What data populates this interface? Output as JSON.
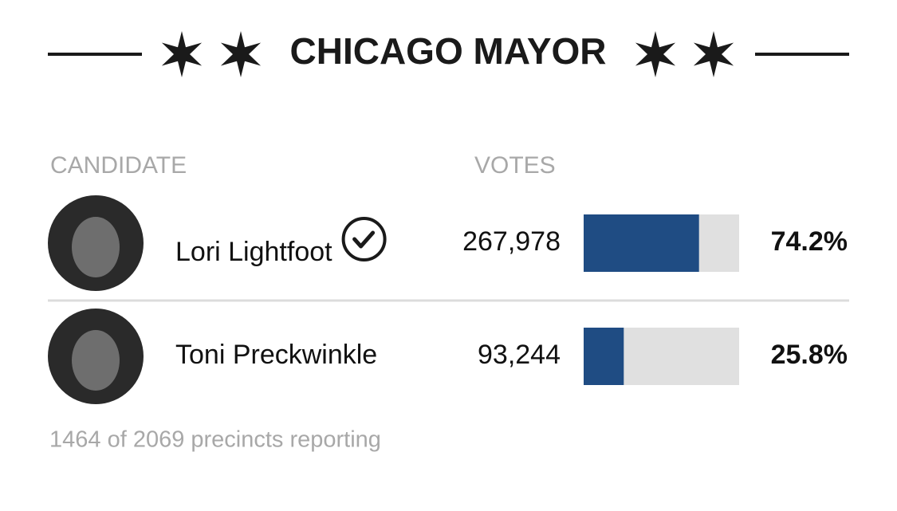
{
  "header": {
    "title": "CHICAGO MAYOR"
  },
  "table": {
    "columns": [
      "CANDIDATE",
      "VOTES"
    ],
    "xlim": [
      0,
      100
    ],
    "rows": [
      {
        "name": "Lori Lightfoot",
        "votes": "267,978",
        "percent": 74.2,
        "percent_label": "74.2%",
        "winner": true
      },
      {
        "name": "Toni Preckwinkle",
        "votes": "93,244",
        "percent": 25.8,
        "percent_label": "25.8%",
        "winner": false
      }
    ]
  },
  "footer": {
    "text": "1464 of 2069 precincts reporting"
  }
}
